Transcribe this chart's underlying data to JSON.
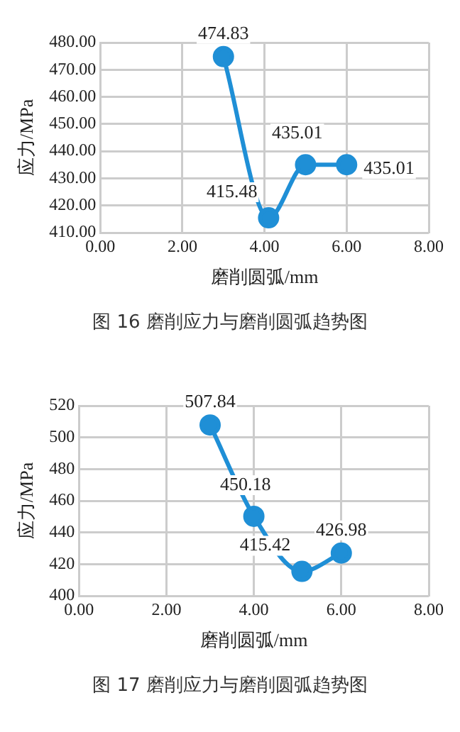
{
  "chart_data": [
    {
      "type": "line",
      "xlabel": "磨削圆弧/mm",
      "ylabel": "应力/MPa",
      "annotations": [
        "图 16 磨削应力与磨削圆弧趋势图"
      ],
      "x": [
        3,
        4.1,
        5,
        6
      ],
      "series": [
        {
          "color": "#1f8fd6",
          "values": [
            474.83,
            415.48,
            435.01,
            435.01
          ]
        }
      ],
      "xlim": [
        0,
        8
      ],
      "xticks": [
        {
          "value": 0,
          "label": "0.00"
        },
        {
          "value": 2,
          "label": "2.00"
        },
        {
          "value": 4,
          "label": "4.00"
        },
        {
          "value": 6,
          "label": "6.00"
        },
        {
          "value": 8,
          "label": "8.00"
        }
      ],
      "ylim": [
        410,
        480
      ],
      "yticks": [
        {
          "value": 410,
          "label": "410.00"
        },
        {
          "value": 420,
          "label": "420.00"
        },
        {
          "value": 430,
          "label": "430.00"
        },
        {
          "value": 440,
          "label": "440.00"
        },
        {
          "value": 450,
          "label": "450.00"
        },
        {
          "value": 460,
          "label": "460.00"
        },
        {
          "value": 470,
          "label": "470.00"
        },
        {
          "value": 480,
          "label": "480.00"
        }
      ],
      "grid": true,
      "legend": false,
      "marker": "circle",
      "line_style": "solid",
      "data_labels": true
    },
    {
      "type": "line",
      "xlabel": "磨削圆弧/mm",
      "ylabel": "应力/MPa",
      "annotations": [
        "图 17 磨削应力与磨削圆弧趋势图"
      ],
      "x": [
        3,
        4,
        5.1,
        6
      ],
      "series": [
        {
          "color": "#1f8fd6",
          "values": [
            507.84,
            450.18,
            415.42,
            426.98
          ]
        }
      ],
      "xlim": [
        0,
        8
      ],
      "xticks": [
        {
          "value": 0,
          "label": "0.00"
        },
        {
          "value": 2,
          "label": "2.00"
        },
        {
          "value": 4,
          "label": "4.00"
        },
        {
          "value": 6,
          "label": "6.00"
        },
        {
          "value": 8,
          "label": "8.00"
        }
      ],
      "ylim": [
        400,
        520
      ],
      "yticks": [
        400,
        420,
        440,
        460,
        480,
        500,
        520
      ],
      "grid": true,
      "legend": false,
      "marker": "circle",
      "line_style": "solid",
      "data_labels": true
    }
  ]
}
